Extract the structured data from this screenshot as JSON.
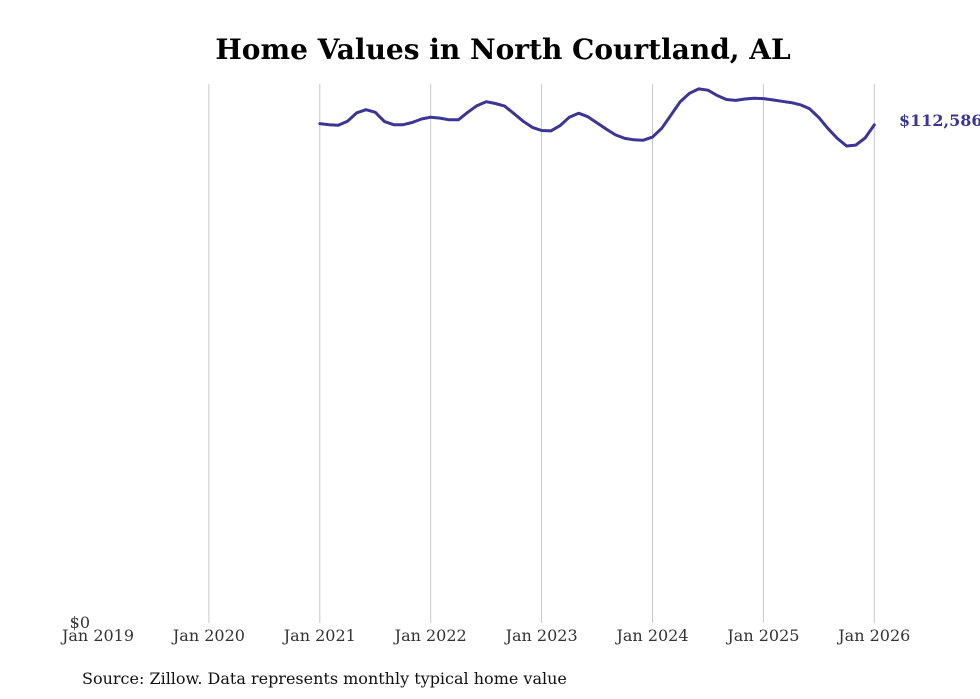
{
  "chart_data": {
    "type": "line",
    "title": "Home Values in North Courtland, AL",
    "source": "Source: Zillow. Data represents monthly typical home value",
    "xlabel": "",
    "ylabel": "",
    "x_ticks": [
      "Jan 2019",
      "Jan 2020",
      "Jan 2021",
      "Jan 2022",
      "Jan 2023",
      "Jan 2024",
      "Jan 2025",
      "Jan 2026"
    ],
    "y_tick_label": "$0",
    "ylim": [
      0,
      121800
    ],
    "grid": "vertical",
    "line_color": "#3b3596",
    "end_label": "$112,586",
    "series": [
      {
        "name": "Typical home value",
        "start": "2021-01",
        "values": [
          112850,
          112600,
          112500,
          113400,
          115300,
          116000,
          115400,
          113300,
          112600,
          112600,
          113100,
          113900,
          114300,
          114100,
          113700,
          113700,
          115400,
          116900,
          117800,
          117400,
          116800,
          115100,
          113400,
          112000,
          111300,
          111200,
          112400,
          114300,
          115200,
          114400,
          113000,
          111600,
          110300,
          109500,
          109200,
          109100,
          109800,
          111800,
          114800,
          117800,
          119700,
          120700,
          120400,
          119200,
          118300,
          118100,
          118400,
          118600,
          118500,
          118200,
          117900,
          117600,
          117100,
          116200,
          114200,
          111700,
          109500,
          107800,
          108000,
          109600,
          112586
        ]
      }
    ]
  }
}
